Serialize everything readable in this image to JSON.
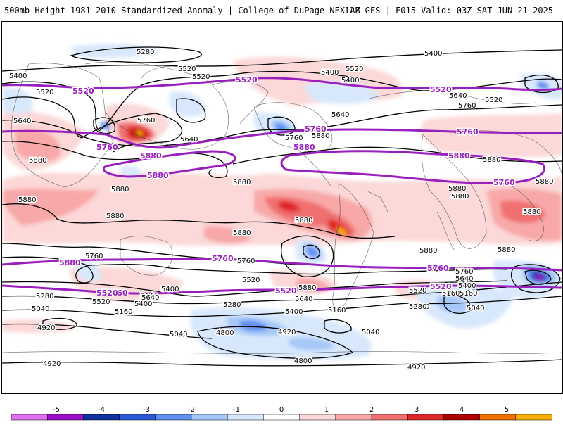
{
  "header": {
    "left_title": "500mb Height 1981-2010 Standardized Anomaly | College of DuPage NEXLAB",
    "right_title": "12Z GFS | F015 Valid: 03Z SAT JUN 21 2025"
  },
  "colorbar": {
    "ticks": [
      "-5",
      "-4",
      "-3",
      "-2",
      "-1",
      "0",
      "1",
      "2",
      "3",
      "4",
      "5"
    ],
    "colors": [
      "#e070f0",
      "#9a10c8",
      "#1030a0",
      "#2a5ad8",
      "#5f8ff0",
      "#a6c8f8",
      "#d8e8fc",
      "#ffffff",
      "#fcd8d8",
      "#f8a8a8",
      "#f07070",
      "#e02828",
      "#b00000",
      "#f07000",
      "#f8b000"
    ]
  },
  "contour_labels": [
    {
      "text": "5280"
    },
    {
      "text": "5400"
    },
    {
      "text": "5400"
    },
    {
      "text": "5520"
    },
    {
      "text": "5520"
    },
    {
      "text": "5520"
    },
    {
      "text": "5400"
    },
    {
      "text": "5400"
    },
    {
      "text": "5520"
    },
    {
      "text": "5640"
    },
    {
      "text": "5640"
    },
    {
      "text": "5760"
    },
    {
      "text": "5520"
    },
    {
      "text": "5640"
    },
    {
      "text": "5760"
    },
    {
      "text": "5880"
    },
    {
      "text": "5640"
    },
    {
      "text": "5760"
    },
    {
      "text": "5880"
    },
    {
      "text": "5880"
    },
    {
      "text": "5880"
    },
    {
      "text": "5880"
    },
    {
      "text": "5880"
    },
    {
      "text": "5880"
    },
    {
      "text": "5880"
    },
    {
      "text": "5880"
    },
    {
      "text": "5880"
    },
    {
      "text": "5880"
    },
    {
      "text": "5880"
    },
    {
      "text": "5880"
    },
    {
      "text": "5880"
    },
    {
      "text": "5880"
    },
    {
      "text": "5880"
    },
    {
      "text": "5760"
    },
    {
      "text": "5640"
    },
    {
      "text": "5520"
    },
    {
      "text": "5760"
    },
    {
      "text": "5640"
    },
    {
      "text": "5400"
    },
    {
      "text": "5280"
    },
    {
      "text": "5520"
    },
    {
      "text": "5400"
    },
    {
      "text": "5160"
    },
    {
      "text": "5040"
    },
    {
      "text": "4920"
    },
    {
      "text": "5640"
    },
    {
      "text": "5520"
    },
    {
      "text": "5400"
    },
    {
      "text": "5280"
    },
    {
      "text": "5400"
    },
    {
      "text": "5160"
    },
    {
      "text": "5040"
    },
    {
      "text": "4920"
    },
    {
      "text": "4800"
    },
    {
      "text": "4800"
    },
    {
      "text": "5040"
    },
    {
      "text": "4920"
    },
    {
      "text": "5160"
    },
    {
      "text": "5280"
    },
    {
      "text": "5040"
    },
    {
      "text": "4920"
    },
    {
      "text": "5760"
    },
    {
      "text": "5640"
    },
    {
      "text": "5400"
    },
    {
      "text": "5160"
    }
  ],
  "reference_labels": [
    {
      "text": "5520"
    },
    {
      "text": "5520"
    },
    {
      "text": "5520"
    },
    {
      "text": "5760"
    },
    {
      "text": "5760"
    },
    {
      "text": "5880"
    },
    {
      "text": "5880"
    },
    {
      "text": "5760"
    },
    {
      "text": "5880"
    },
    {
      "text": "5880"
    },
    {
      "text": "5760"
    },
    {
      "text": "5880"
    },
    {
      "text": "5760"
    },
    {
      "text": "5760"
    },
    {
      "text": "5760"
    },
    {
      "text": "5520"
    },
    {
      "text": "5520"
    },
    {
      "text": "5520"
    }
  ]
}
